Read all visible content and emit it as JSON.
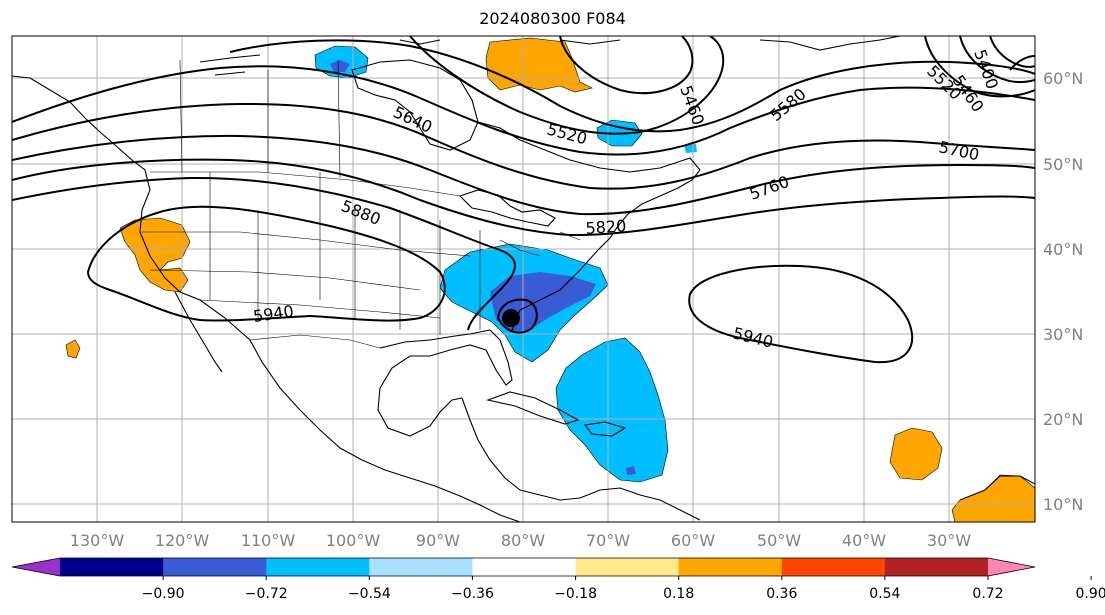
{
  "title": "2024080300 F084",
  "map": {
    "lon_labels": [
      "130°W",
      "120°W",
      "110°W",
      "100°W",
      "90°W",
      "80°W",
      "70°W",
      "60°W",
      "50°W",
      "40°W",
      "30°W"
    ],
    "lat_labels": [
      "60°N",
      "50°N",
      "40°N",
      "30°N",
      "20°N",
      "10°N"
    ],
    "contour_labels": [
      "5460",
      "5400",
      "5460",
      "5520",
      "5580",
      "5640",
      "5520",
      "5700",
      "5760",
      "5880",
      "5820",
      "5940",
      "5940"
    ]
  },
  "colorbar": {
    "colors": [
      "#9932cc",
      "#00008b",
      "#3a5bd6",
      "#00bfff",
      "#aae0ff",
      "#ffffff",
      "#ffe98a",
      "#ffa500",
      "#ff4500",
      "#b22222",
      "#ff85b4"
    ],
    "labels": [
      "−0.90",
      "−0.72",
      "−0.54",
      "−0.36",
      "−0.18",
      "0.18",
      "0.36",
      "0.54",
      "0.72",
      "0.90"
    ]
  }
}
